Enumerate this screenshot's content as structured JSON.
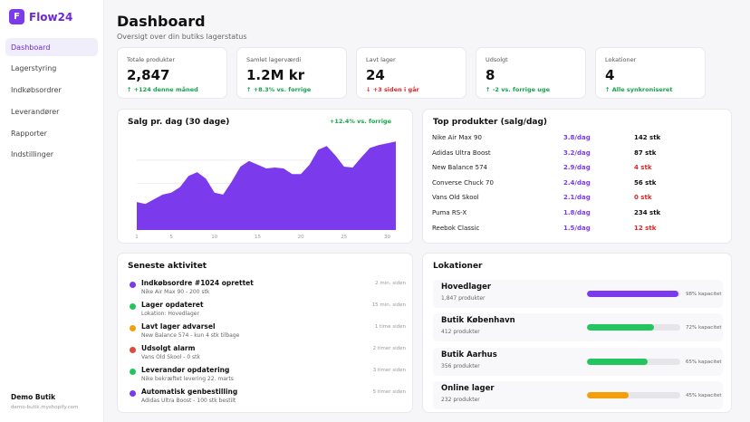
{
  "app": {
    "logo_letter": "F",
    "name": "Flow24"
  },
  "sidebar": {
    "items": [
      {
        "label": "Dashboard",
        "active": true
      },
      {
        "label": "Lagerstyring"
      },
      {
        "label": "Indkøbsordrer"
      },
      {
        "label": "Leverandører"
      },
      {
        "label": "Rapporter"
      },
      {
        "label": "Indstillinger"
      }
    ],
    "user": {
      "name": "Demo Butik",
      "shop": "demo-butik.myshopify.com"
    }
  },
  "header": {
    "title": "Dashboard",
    "subtitle": "Oversigt over din butiks lagerstatus"
  },
  "stats": [
    {
      "label": "Totale produkter",
      "value": "2,847",
      "delta": "↑ +124 denne måned",
      "trend": "up"
    },
    {
      "label": "Samlet lagerværdi",
      "value": "1.2M kr",
      "delta": "↑ +8.3% vs. forrige",
      "trend": "up"
    },
    {
      "label": "Lavt lager",
      "value": "24",
      "delta": "↓ +3 siden i går",
      "trend": "down"
    },
    {
      "label": "Udsolgt",
      "value": "8",
      "delta": "↑ -2 vs. forrige uge",
      "trend": "up"
    },
    {
      "label": "Lokationer",
      "value": "4",
      "delta": "↑ Alle synkroniseret",
      "trend": "up"
    }
  ],
  "chart": {
    "title": "Salg pr. dag (30 dage)",
    "badge": "+12.4% vs. forrige"
  },
  "chart_data": {
    "type": "area",
    "title": "Salg pr. dag (30 dage)",
    "x": [
      1,
      2,
      3,
      4,
      5,
      6,
      7,
      8,
      9,
      10,
      11,
      12,
      13,
      14,
      15,
      16,
      17,
      18,
      19,
      20,
      21,
      22,
      23,
      24,
      25,
      26,
      27,
      28,
      29,
      30,
      31
    ],
    "values": [
      30,
      28,
      33,
      38,
      40,
      46,
      58,
      62,
      55,
      40,
      38,
      52,
      68,
      74,
      70,
      66,
      67,
      66,
      60,
      60,
      70,
      86,
      90,
      80,
      68,
      67,
      78,
      88,
      91,
      93,
      95
    ],
    "ylim": [
      0,
      100
    ],
    "xticks": [
      "1",
      "5",
      "10",
      "15",
      "20",
      "25",
      "30"
    ],
    "xtick_values": [
      1,
      5,
      10,
      15,
      20,
      25,
      30
    ],
    "grid": true,
    "color": "#7c3aed"
  },
  "top_products": {
    "title": "Top produkter (salg/dag)",
    "rows": [
      {
        "name": "Nike Air Max 90",
        "rate": "3.8/dag",
        "stock": "142 stk",
        "low": false
      },
      {
        "name": "Adidas Ultra Boost",
        "rate": "3.2/dag",
        "stock": "87 stk",
        "low": false
      },
      {
        "name": "New Balance 574",
        "rate": "2.9/dag",
        "stock": "4 stk",
        "low": true
      },
      {
        "name": "Converse Chuck 70",
        "rate": "2.4/dag",
        "stock": "56 stk",
        "low": false
      },
      {
        "name": "Vans Old Skool",
        "rate": "2.1/dag",
        "stock": "0 stk",
        "low": true
      },
      {
        "name": "Puma RS-X",
        "rate": "1.8/dag",
        "stock": "234 stk",
        "low": false
      },
      {
        "name": "Reebok Classic",
        "rate": "1.5/dag",
        "stock": "12 stk",
        "low": true
      }
    ]
  },
  "activity": {
    "title": "Seneste aktivitet",
    "rows": [
      {
        "title": "Indkøbsordre #1024 oprettet",
        "sub": "Nike Air Max 90 - 200 stk",
        "time": "2 min. siden",
        "color": "#7c3aed"
      },
      {
        "title": "Lager opdateret",
        "sub": "Lokation: Hovedlager",
        "time": "15 min. siden",
        "color": "#22c55e"
      },
      {
        "title": "Lavt lager advarsel",
        "sub": "New Balance 574 - kun 4 stk tilbage",
        "time": "1 time siden",
        "color": "#f59e0b"
      },
      {
        "title": "Udsolgt alarm",
        "sub": "Vans Old Skool - 0 stk",
        "time": "2 timer siden",
        "color": "#dc4a3a"
      },
      {
        "title": "Leverandør opdatering",
        "sub": "Nike bekræftet levering 22. marts",
        "time": "3 timer siden",
        "color": "#22c55e"
      },
      {
        "title": "Automatisk genbestilling",
        "sub": "Adidas Ultra Boost - 100 stk bestilt",
        "time": "5 timer siden",
        "color": "#7c3aed"
      }
    ]
  },
  "locations": {
    "title": "Lokationer",
    "rows": [
      {
        "name": "Hovedlager",
        "sub": "1,847 produkter",
        "capacity": 98,
        "pct": "98% kapacitet",
        "color": "#7c3aed"
      },
      {
        "name": "Butik København",
        "sub": "412 produkter",
        "capacity": 72,
        "pct": "72% kapacitet",
        "color": "#22c55e"
      },
      {
        "name": "Butik Aarhus",
        "sub": "356 produkter",
        "capacity": 65,
        "pct": "65% kapacitet",
        "color": "#22c55e"
      },
      {
        "name": "Online lager",
        "sub": "232 produkter",
        "capacity": 45,
        "pct": "45% kapacitet",
        "color": "#f59e0b"
      }
    ]
  }
}
